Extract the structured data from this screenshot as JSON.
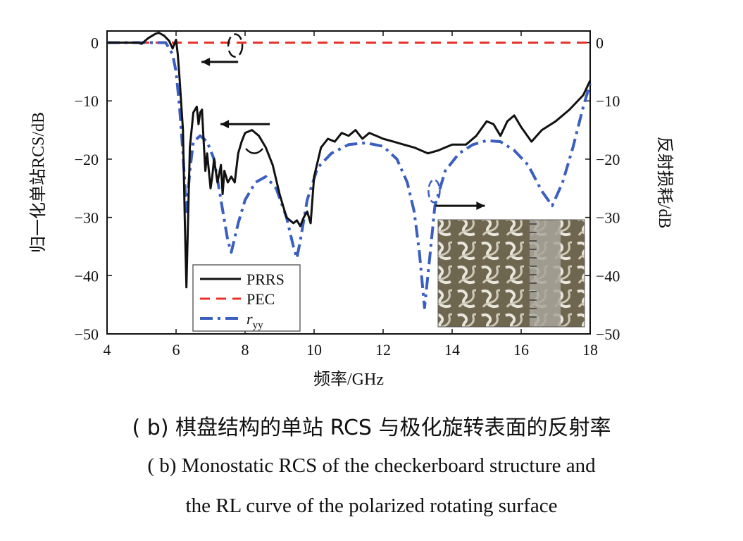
{
  "chart_data": {
    "type": "line",
    "xlabel": "频率/GHz",
    "ylabel_left": "归一化单站RCS/dB",
    "ylabel_right": "反射损耗/dB",
    "xlim": [
      4,
      18
    ],
    "ylim": [
      -50,
      2
    ],
    "x_ticks": [
      4,
      6,
      8,
      10,
      12,
      14,
      16,
      18
    ],
    "y_ticks": [
      0,
      -10,
      -20,
      -30,
      -40,
      -50
    ],
    "y_tick_labels": [
      "0",
      "−10",
      "−20",
      "−30",
      "−40",
      "−50"
    ],
    "grid": false,
    "legend_position": "bottom-left",
    "colors": {
      "PRRS": "#111111",
      "PEC": "#e8322b",
      "ryy": "#3b5fc0"
    },
    "series": [
      {
        "name": "PRRS",
        "style": "solid",
        "axis": "left",
        "x": [
          4.0,
          4.9,
          5.0,
          5.2,
          5.4,
          5.5,
          5.65,
          5.8,
          5.9,
          6.0,
          6.05,
          6.1,
          6.2,
          6.25,
          6.3,
          6.35,
          6.4,
          6.5,
          6.6,
          6.65,
          6.7,
          6.75,
          6.8,
          6.85,
          6.9,
          7.0,
          7.05,
          7.1,
          7.2,
          7.3,
          7.35,
          7.4,
          7.5,
          7.6,
          7.7,
          7.8,
          7.9,
          8.0,
          8.2,
          8.4,
          8.6,
          8.8,
          9.0,
          9.2,
          9.4,
          9.5,
          9.6,
          9.7,
          9.8,
          9.9,
          10.0,
          10.2,
          10.4,
          10.6,
          10.8,
          11.0,
          11.2,
          11.4,
          11.6,
          11.8,
          12.0,
          12.3,
          12.6,
          12.9,
          13.3,
          13.6,
          14.0,
          14.4,
          14.7,
          15.0,
          15.2,
          15.4,
          15.6,
          15.8,
          16.0,
          16.3,
          16.6,
          17.0,
          17.4,
          17.8,
          18.0
        ],
        "values": [
          0,
          0,
          -0.2,
          0.8,
          1.5,
          1.7,
          1.2,
          0.3,
          -1.0,
          0.5,
          -2.0,
          -6.0,
          -15.0,
          -30.0,
          -42.0,
          -30.0,
          -18.0,
          -12.0,
          -11.0,
          -14.0,
          -12.0,
          -11.5,
          -17.0,
          -22.0,
          -19.0,
          -25.0,
          -23.0,
          -20.0,
          -24.0,
          -21.0,
          -26.0,
          -22.0,
          -24.0,
          -23.0,
          -24.0,
          -19.0,
          -17.0,
          -15.5,
          -15.0,
          -16.0,
          -18.0,
          -21.0,
          -26.0,
          -30.0,
          -31.0,
          -30.5,
          -31.5,
          -30.0,
          -29.0,
          -31.0,
          -23.0,
          -18.0,
          -16.5,
          -17.0,
          -15.5,
          -16.0,
          -15.0,
          -16.5,
          -15.5,
          -16.0,
          -16.5,
          -17.0,
          -17.5,
          -18.0,
          -19.0,
          -18.5,
          -17.5,
          -17.5,
          -16.0,
          -13.5,
          -14.0,
          -16.0,
          -13.5,
          -12.5,
          -14.5,
          -17.0,
          -15.0,
          -13.5,
          -11.5,
          -9.0,
          -6.5
        ]
      },
      {
        "name": "PEC",
        "style": "dashed",
        "axis": "left",
        "x": [
          4.0,
          18.0
        ],
        "values": [
          0,
          0
        ]
      },
      {
        "name": "r_yy",
        "style": "dashdot",
        "axis": "right",
        "x": [
          4.0,
          5.7,
          5.9,
          6.0,
          6.1,
          6.2,
          6.3,
          6.4,
          6.5,
          6.7,
          6.9,
          7.1,
          7.3,
          7.5,
          7.6,
          7.8,
          8.0,
          8.3,
          8.6,
          8.9,
          9.2,
          9.4,
          9.5,
          9.6,
          9.8,
          10.1,
          10.5,
          11.0,
          11.5,
          12.0,
          12.4,
          12.7,
          12.9,
          13.05,
          13.2,
          13.35,
          13.5,
          13.8,
          14.2,
          14.6,
          15.0,
          15.4,
          15.8,
          16.2,
          16.6,
          16.9,
          17.2,
          17.5,
          17.8,
          18.0
        ],
        "values": [
          0,
          0,
          -2.0,
          -5.0,
          -11.0,
          -19.0,
          -29.0,
          -22.0,
          -17.0,
          -16.0,
          -17.0,
          -20.0,
          -27.0,
          -34.0,
          -36.0,
          -31.0,
          -27.0,
          -24.0,
          -23.0,
          -25.0,
          -30.0,
          -35.0,
          -37.0,
          -34.0,
          -27.0,
          -21.5,
          -19.0,
          -17.5,
          -17.2,
          -17.8,
          -20.0,
          -24.0,
          -29.0,
          -36.0,
          -45.5,
          -37.0,
          -28.0,
          -22.0,
          -19.0,
          -17.5,
          -16.8,
          -17.0,
          -18.5,
          -21.0,
          -25.5,
          -28.0,
          -24.0,
          -18.0,
          -11.0,
          -7.0
        ]
      }
    ],
    "legend": [
      {
        "label": "PRRS",
        "key": "PRRS"
      },
      {
        "label": "PEC",
        "key": "PEC"
      },
      {
        "label": "r",
        "subscript": "yy",
        "key": "ryy"
      }
    ],
    "annotations": [
      {
        "kind": "left-arrow",
        "near_series": "PEC",
        "x": 6.9,
        "y": -3.5
      },
      {
        "kind": "left-arrow",
        "near_series": "PRRS",
        "x": 7.9,
        "y": -14.0
      },
      {
        "kind": "right-arrow",
        "near_series": "r_yy",
        "x": 13.6,
        "y": -28.0
      }
    ],
    "inset": {
      "kind": "photo",
      "description_icon": "checkerboard-sample-photo-icon"
    }
  },
  "captions": {
    "zh": "( b) 棋盘结构的单站 RCS 与极化旋转表面的反射率",
    "en_line1": "( b) Monostatic RCS of the checkerboard structure and",
    "en_line2": "the RL curve of the polarized rotating surface"
  }
}
